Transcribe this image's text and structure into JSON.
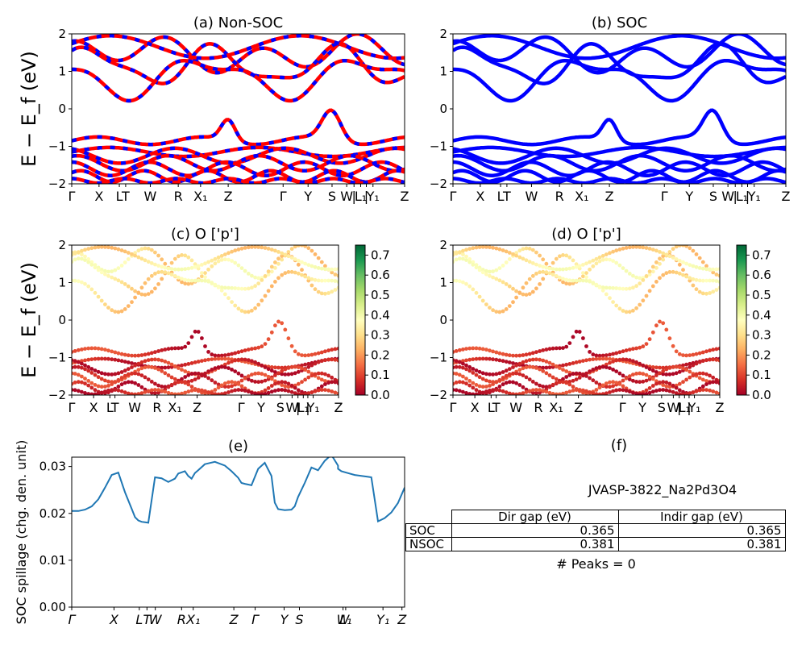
{
  "chart_data": [
    {
      "id": "a",
      "type": "line",
      "title": "(a) Non-SOC",
      "ylabel": "E − E_f (eV)",
      "ylim": [
        -2,
        2
      ],
      "yticks": [
        -2,
        -1,
        0,
        1,
        2
      ],
      "xticks": [
        "Γ",
        "X",
        "L",
        "T",
        "W",
        "R",
        "X₁",
        "Z",
        "Γ",
        "Y",
        "S",
        "W",
        "|",
        "L₁",
        "|",
        "Y₁",
        "Z"
      ],
      "series": [
        {
          "color": "#0000ff",
          "values": [
            [
              1.62,
              1.45,
              0.75,
              1.5,
              1.66,
              1.45,
              1.1,
              0.95,
              1.38,
              1.52,
              1.42,
              1.3,
              1.05,
              1.62,
              1.48,
              1.2,
              0.95,
              1.38,
              1.42,
              1.42,
              1.4
            ]
          ]
        },
        {
          "color": "#ff0000",
          "values": [
            [
              1.62,
              1.45,
              0.75,
              1.5,
              1.66,
              1.45,
              1.1,
              0.95,
              1.38,
              1.52,
              1.42,
              1.3,
              1.05,
              1.62,
              1.48,
              1.2,
              0.95,
              1.38,
              1.42,
              1.42,
              1.4
            ]
          ]
        }
      ]
    },
    {
      "id": "b",
      "type": "line",
      "title": "(b) SOC",
      "ylim": [
        -2,
        2
      ],
      "yticks": [
        -2,
        -1,
        0,
        1,
        2
      ],
      "xticks": [
        "Γ",
        "X",
        "L",
        "T",
        "W",
        "R",
        "X₁",
        "Z",
        "Γ",
        "Y",
        "S",
        "W",
        "|",
        "L₁",
        "|",
        "Y₁",
        "Z"
      ]
    },
    {
      "id": "c",
      "type": "scatter",
      "title": "(c)  O ['p']",
      "ylabel": "E − E_f (eV)",
      "ylim": [
        -2,
        2
      ],
      "yticks": [
        -2,
        -1,
        0,
        1,
        2
      ],
      "xticks": [
        "Γ",
        "X",
        "L",
        "T",
        "W",
        "R",
        "X₁",
        "Z",
        "Γ",
        "Y",
        "S",
        "W",
        "|",
        "L₁",
        "|",
        "Y₁",
        "Z"
      ],
      "colorbar": {
        "ticks": [
          0.0,
          0.1,
          0.2,
          0.3,
          0.4,
          0.5,
          0.6,
          0.7
        ],
        "range": [
          0,
          0.75
        ],
        "colormap": "RdYlGn"
      }
    },
    {
      "id": "d",
      "type": "scatter",
      "title": "(d) O ['p']",
      "ylim": [
        -2,
        2
      ],
      "yticks": [
        -2,
        -1,
        0,
        1,
        2
      ],
      "xticks": [
        "Γ",
        "X",
        "L",
        "T",
        "W",
        "R",
        "X₁",
        "Z",
        "Γ",
        "Y",
        "S",
        "W",
        "|",
        "L₁",
        "|",
        "Y₁",
        "Z"
      ],
      "colorbar": {
        "ticks": [
          0.0,
          0.1,
          0.2,
          0.3,
          0.4,
          0.5,
          0.6,
          0.7
        ],
        "range": [
          0,
          0.75
        ],
        "colormap": "RdYlGn"
      }
    },
    {
      "id": "e",
      "type": "line",
      "title": "(e)",
      "ylabel": "SOC spillage (chg. den. unit)",
      "ylim": [
        0,
        0.032
      ],
      "yticks": [
        0.0,
        0.01,
        0.02,
        0.03
      ],
      "xticks": [
        "Γ",
        "X",
        "L",
        "T",
        "W",
        "R",
        "X₁",
        "Z",
        "Γ",
        "Y",
        "S",
        "W",
        "L₁",
        "Y₁",
        "Z"
      ],
      "x": [
        0,
        0.02,
        0.04,
        0.06,
        0.08,
        0.1,
        0.12,
        0.14,
        0.16,
        0.18,
        0.19,
        0.2,
        0.21,
        0.22,
        0.23,
        0.25,
        0.27,
        0.29,
        0.31,
        0.32,
        0.34,
        0.35,
        0.36,
        0.37,
        0.38,
        0.4,
        0.43,
        0.46,
        0.48,
        0.5,
        0.51,
        0.52,
        0.54,
        0.56,
        0.58,
        0.6,
        0.61,
        0.62,
        0.64,
        0.66,
        0.67,
        0.68,
        0.7,
        0.72,
        0.74,
        0.76,
        0.78,
        0.8,
        0.8,
        0.81,
        0.83,
        0.85,
        0.87,
        0.89,
        0.9,
        0.92,
        0.94,
        0.96,
        0.98,
        1.0
      ],
      "series": [
        {
          "color": "#1f77b4",
          "values": [
            0.0205,
            0.0205,
            0.0208,
            0.0215,
            0.023,
            0.0255,
            0.0282,
            0.0287,
            0.0245,
            0.021,
            0.0192,
            0.0185,
            0.0182,
            0.0181,
            0.018,
            0.0277,
            0.0275,
            0.0267,
            0.0274,
            0.0285,
            0.029,
            0.028,
            0.0274,
            0.0286,
            0.0292,
            0.0305,
            0.031,
            0.0302,
            0.029,
            0.0276,
            0.0265,
            0.0263,
            0.026,
            0.0295,
            0.0308,
            0.028,
            0.0223,
            0.0209,
            0.0207,
            0.0208,
            0.0215,
            0.0235,
            0.0265,
            0.0298,
            0.0292,
            0.0312,
            0.0325,
            0.0302,
            0.0295,
            0.029,
            0.0286,
            0.0282,
            0.028,
            0.0278,
            0.0277,
            0.0183,
            0.019,
            0.0202,
            0.0222,
            0.0255
          ]
        }
      ]
    }
  ],
  "panel_f": {
    "title": "(f)",
    "material": "JVASP-3822_Na2Pd3O4",
    "table": {
      "headers": [
        "Dir gap (eV)",
        "Indir gap (eV)"
      ],
      "rows": [
        {
          "label": "SOC",
          "dir": "0.365",
          "indir": "0.365"
        },
        {
          "label": "NSOC",
          "dir": "0.381",
          "indir": "0.381"
        }
      ]
    },
    "peaks": "# Peaks = 0"
  }
}
